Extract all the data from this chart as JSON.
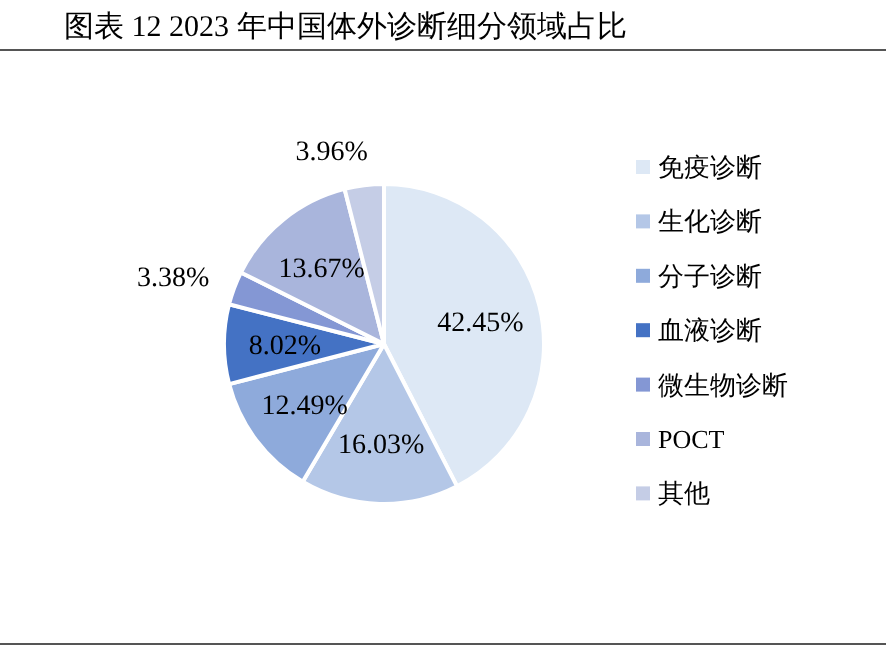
{
  "chart_data": {
    "type": "pie",
    "title": "图表 12 2023 年中国体外诊断细分领域占比",
    "categories": [
      "免疫诊断",
      "生化诊断",
      "分子诊断",
      "血液诊断",
      "微生物诊断",
      "POCT",
      "其他"
    ],
    "values": [
      42.45,
      16.03,
      12.49,
      8.02,
      3.38,
      13.67,
      3.96
    ],
    "colors": [
      "#dde8f5",
      "#b4c7e7",
      "#8eaadb",
      "#4472c4",
      "#8497d4",
      "#a9b5dc",
      "#c5cde6"
    ],
    "value_labels": [
      "42.45%",
      "16.03%",
      "12.49%",
      "8.02%",
      "3.38%",
      "13.67%",
      "3.96%"
    ],
    "legend": "right"
  }
}
